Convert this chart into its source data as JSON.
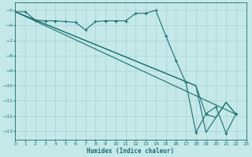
{
  "xlabel": "Humidex (Indice chaleur)",
  "background_color": "#c5e8e8",
  "grid_color": "#a0cccc",
  "line_color": "#1a7070",
  "xlim": [
    0,
    23
  ],
  "ylim": [
    -13.6,
    -4.5
  ],
  "yticks": [
    -5,
    -6,
    -7,
    -8,
    -9,
    -10,
    -11,
    -12,
    -13
  ],
  "xticks": [
    0,
    1,
    2,
    3,
    4,
    5,
    6,
    7,
    8,
    9,
    10,
    11,
    12,
    13,
    14,
    15,
    16,
    17,
    18,
    19,
    20,
    21,
    22,
    23
  ],
  "line1_x": [
    0,
    1,
    2,
    3,
    4,
    5,
    6,
    7,
    8,
    9,
    10,
    11,
    12,
    13,
    14,
    15,
    16,
    17,
    18,
    19,
    20,
    21,
    22
  ],
  "line1_y": [
    -5.1,
    -5.1,
    -5.65,
    -5.7,
    -5.7,
    -5.75,
    -5.8,
    -6.3,
    -5.75,
    -5.7,
    -5.7,
    -5.7,
    -5.2,
    -5.2,
    -5.0,
    -6.7,
    -8.3,
    -9.8,
    -13.1,
    -11.85,
    -11.4,
    -13.15,
    -11.85
  ],
  "line2_x": [
    0,
    22
  ],
  "line2_y": [
    -5.1,
    -11.9
  ],
  "line3_x": [
    0,
    18,
    19,
    20,
    21,
    22
  ],
  "line3_y": [
    -5.1,
    -10.0,
    -11.9,
    -12.1,
    -11.1,
    -11.9
  ],
  "line4_x": [
    0,
    18,
    19,
    20,
    21,
    22
  ],
  "line4_y": [
    -5.1,
    -10.0,
    -13.1,
    -12.1,
    -11.1,
    -11.9
  ]
}
